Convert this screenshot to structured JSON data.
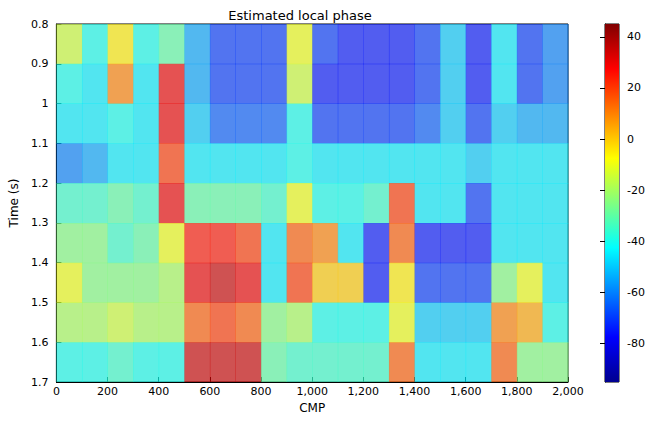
{
  "chart_data": {
    "type": "heatmap",
    "title": "Estimated local phase",
    "x_label": "CMP",
    "y_label": "Time (s)",
    "xlim": [
      0,
      2000
    ],
    "xticks": [
      0,
      200,
      400,
      600,
      800,
      1000,
      1200,
      1400,
      1600,
      1800,
      2000
    ],
    "ylim": [
      0.8,
      1.7
    ],
    "yticks": [
      0.8,
      0.9,
      1,
      1.1,
      1.2,
      1.3,
      1.4,
      1.5,
      1.6,
      1.7
    ],
    "x": [
      50,
      150,
      250,
      350,
      450,
      550,
      650,
      750,
      850,
      950,
      1050,
      1150,
      1250,
      1350,
      1450,
      1550,
      1650,
      1750,
      1850,
      1950
    ],
    "y": [
      0.85,
      0.95,
      1.05,
      1.15,
      1.25,
      1.35,
      1.45,
      1.55,
      1.65
    ],
    "values": [
      [
        -15,
        -40,
        -5,
        -40,
        -30,
        -55,
        -70,
        -70,
        -70,
        -10,
        -70,
        -75,
        -75,
        -75,
        -70,
        -50,
        -75,
        -45,
        -70,
        -60
      ],
      [
        -40,
        -45,
        10,
        -45,
        30,
        -55,
        -70,
        -70,
        -70,
        -15,
        -75,
        -75,
        -75,
        -75,
        -70,
        -50,
        -75,
        -45,
        -70,
        -60
      ],
      [
        -45,
        -45,
        -40,
        -45,
        30,
        -50,
        -65,
        -65,
        -65,
        -40,
        -70,
        -70,
        -70,
        -70,
        -65,
        -50,
        -70,
        -50,
        -55,
        -55
      ],
      [
        -60,
        -55,
        -45,
        -45,
        20,
        -45,
        -45,
        -45,
        -45,
        -40,
        -45,
        -45,
        -45,
        -45,
        -45,
        -45,
        -50,
        -45,
        -45,
        -45
      ],
      [
        -35,
        -35,
        -30,
        -35,
        30,
        -30,
        -30,
        -30,
        -35,
        -10,
        -40,
        -40,
        -35,
        20,
        -45,
        -45,
        -70,
        -45,
        -45,
        -45
      ],
      [
        -25,
        -25,
        -35,
        -30,
        -10,
        25,
        25,
        20,
        -45,
        15,
        10,
        -45,
        -75,
        15,
        -75,
        -75,
        -75,
        -45,
        -45,
        -45
      ],
      [
        -10,
        -25,
        -25,
        -25,
        -20,
        30,
        35,
        30,
        -45,
        20,
        0,
        0,
        -75,
        -5,
        -70,
        -70,
        -70,
        -25,
        -10,
        -45
      ],
      [
        -20,
        -20,
        -15,
        -20,
        -20,
        15,
        20,
        15,
        -25,
        -20,
        -40,
        -40,
        -40,
        -10,
        -50,
        -50,
        -50,
        10,
        5,
        -40
      ],
      [
        -40,
        -40,
        -35,
        -40,
        -40,
        35,
        35,
        35,
        -30,
        -35,
        -35,
        -35,
        -35,
        15,
        -45,
        -45,
        -45,
        15,
        -25,
        -25
      ]
    ],
    "colorbar_range": [
      -95,
      45
    ],
    "colorbar_ticks": [
      -80,
      -60,
      -40,
      -20,
      0,
      20,
      40
    ]
  }
}
